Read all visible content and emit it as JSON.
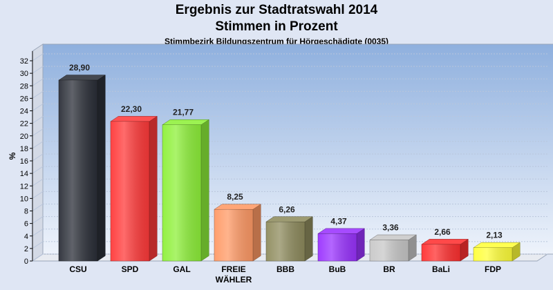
{
  "chart_data": {
    "type": "bar",
    "title": "Ergebnis zur Stadtratswahl 2014",
    "subtitle_line2": "Stimmen in Prozent",
    "subtitle": "Stimmbezirk Bildungszentrum für Hörgeschädigte (0035)",
    "ylabel": "%",
    "ylim": [
      0,
      32
    ],
    "yticks": [
      0,
      2,
      4,
      6,
      8,
      10,
      12,
      14,
      16,
      18,
      20,
      22,
      24,
      26,
      28,
      30,
      32
    ],
    "grid": true,
    "categories": [
      {
        "line1": "CSU",
        "line2": ""
      },
      {
        "line1": "SPD",
        "line2": ""
      },
      {
        "line1": "GAL",
        "line2": ""
      },
      {
        "line1": "FREIE",
        "line2": "WÄHLER"
      },
      {
        "line1": "BBB",
        "line2": ""
      },
      {
        "line1": "BuB",
        "line2": ""
      },
      {
        "line1": "BR",
        "line2": ""
      },
      {
        "line1": "BaLi",
        "line2": ""
      },
      {
        "line1": "FDP",
        "line2": ""
      }
    ],
    "values": [
      28.9,
      22.3,
      21.77,
      8.25,
      6.26,
      4.37,
      3.36,
      2.66,
      2.13
    ],
    "value_labels": [
      "28,90",
      "22,30",
      "21,77",
      "8,25",
      "6,26",
      "4,37",
      "3,36",
      "2,66",
      "2,13"
    ],
    "colors": [
      "#2b2f38",
      "#ff3a3a",
      "#8ef03a",
      "#ff9a66",
      "#8f8c5e",
      "#9a33ff",
      "#c8c8c8",
      "#ff3030",
      "#ffff3a"
    ]
  }
}
